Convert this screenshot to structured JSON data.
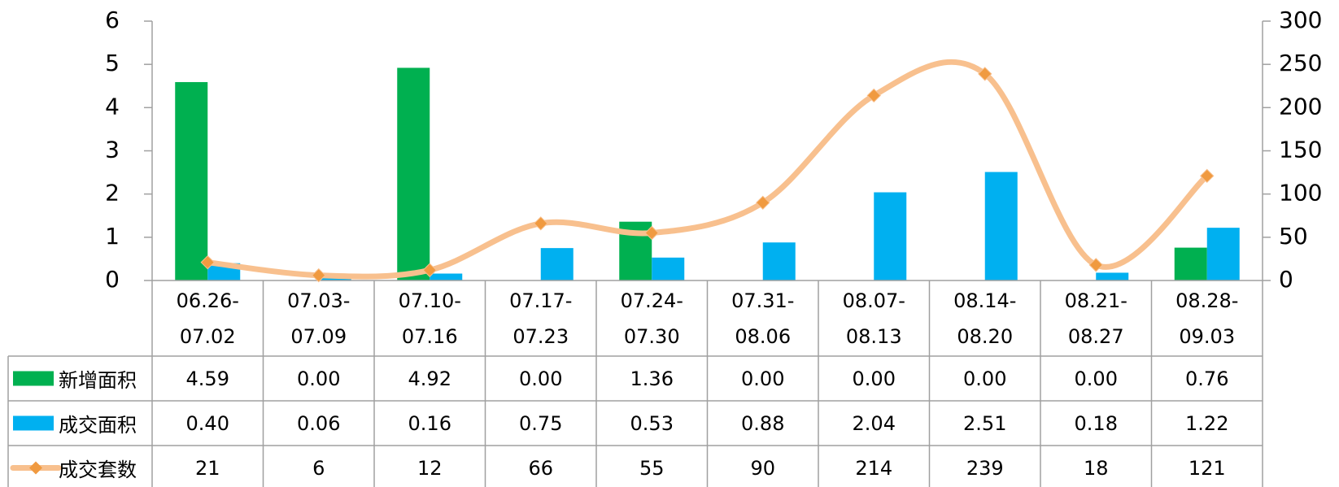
{
  "chart_data": {
    "type": "bar_line_table",
    "categories": [
      "06.26-07.02",
      "07.03-07.09",
      "07.10-07.16",
      "07.17-07.23",
      "07.24-07.30",
      "07.31-08.06",
      "08.07-08.13",
      "08.14-08.20",
      "08.21-08.27",
      "08.28-09.03"
    ],
    "series": [
      {
        "name": "新增面积",
        "color": "#00b050",
        "type": "bar",
        "values": [
          4.59,
          0,
          4.92,
          0,
          1.36,
          0,
          0,
          0,
          0,
          0.76
        ],
        "value_labels": [
          "4.59",
          "0.00",
          "4.92",
          "0.00",
          "1.36",
          "0.00",
          "0.00",
          "0.00",
          "0.00",
          "0.76"
        ]
      },
      {
        "name": "成交面积",
        "color": "#00b0f0",
        "type": "bar",
        "values": [
          0.4,
          0.06,
          0.16,
          0.75,
          0.53,
          0.88,
          2.04,
          2.51,
          0.18,
          1.22
        ],
        "value_labels": [
          "0.40",
          "0.06",
          "0.16",
          "0.75",
          "0.53",
          "0.88",
          "2.04",
          "2.51",
          "0.18",
          "1.22"
        ]
      },
      {
        "name": "成交套数",
        "color": "#f8c08e",
        "marker_color": "#f09a40",
        "type": "line",
        "axis": "y2",
        "values": [
          21,
          6,
          12,
          66,
          55,
          90,
          214,
          239,
          18,
          121
        ]
      }
    ],
    "ylim": [
      0,
      6
    ],
    "yticks": [
      0,
      1,
      2,
      3,
      4,
      5,
      6
    ],
    "y2lim": [
      0,
      300
    ],
    "y2ticks": [
      0,
      50,
      100,
      150,
      200,
      250,
      300
    ]
  }
}
